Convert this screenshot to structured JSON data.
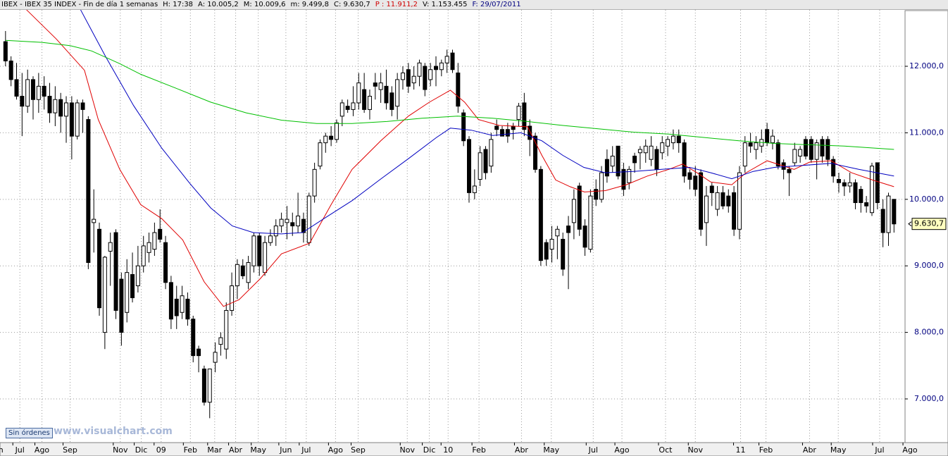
{
  "header": {
    "items": [
      {
        "text": "IBEX - IBEX 35 INDEX - Fin de día 1 semanas",
        "color": "#000000"
      },
      {
        "text": "H: 17:38",
        "color": "#000000"
      },
      {
        "text": "A: 10.005,2",
        "color": "#000000"
      },
      {
        "text": "M: 10.009,6",
        "color": "#000000"
      },
      {
        "text": "m: 9.499,8",
        "color": "#000000"
      },
      {
        "text": "C: 9.630,7",
        "color": "#000000"
      },
      {
        "text": "P : 11.911,2",
        "color": "#d00000"
      },
      {
        "text": "V: 1.153.455",
        "color": "#000000"
      },
      {
        "text": "F: 29/07/2011",
        "color": "#000080"
      }
    ]
  },
  "button": "Sin órdenes",
  "watermark": "www.visualchart.com",
  "chart_data": {
    "type": "candlestick",
    "xlim": [
      -1,
      163
    ],
    "ylim": [
      6343,
      12848
    ],
    "grid": true,
    "up_color": "#ffffff",
    "down_color": "#000000",
    "yticks": [
      {
        "value": 7000,
        "label": "7.000,0"
      },
      {
        "value": 8000,
        "label": "8.000,0"
      },
      {
        "value": 9000,
        "label": "9.000,0"
      },
      {
        "value": 10000,
        "label": "10.000,0"
      },
      {
        "value": 11000,
        "label": "11.000,0"
      },
      {
        "value": 12000,
        "label": "12.000,0"
      }
    ],
    "xticks": [
      {
        "value": -1.5,
        "label": "Jun"
      },
      {
        "value": 2.6,
        "label": "Jul"
      },
      {
        "value": 6.6,
        "label": "Ago"
      },
      {
        "value": 11.7,
        "label": "Sep"
      },
      {
        "value": 20.8,
        "label": "Nov"
      },
      {
        "value": 24.6,
        "label": "Dic"
      },
      {
        "value": 28.2,
        "label": "09"
      },
      {
        "value": 33.5,
        "label": "Feb"
      },
      {
        "value": 37.9,
        "label": "Mar"
      },
      {
        "value": 41.7,
        "label": "Abr"
      },
      {
        "value": 45.8,
        "label": "May"
      },
      {
        "value": 50.8,
        "label": "Jun"
      },
      {
        "value": 54.5,
        "label": "Jul"
      },
      {
        "value": 59.8,
        "label": "Ago"
      },
      {
        "value": 63.9,
        "label": "Sep"
      },
      {
        "value": 72.8,
        "label": "Nov"
      },
      {
        "value": 76.8,
        "label": "Dic"
      },
      {
        "value": 80.2,
        "label": "10"
      },
      {
        "value": 85.8,
        "label": "Feb"
      },
      {
        "value": 93.5,
        "label": "Abr"
      },
      {
        "value": 98.9,
        "label": "May"
      },
      {
        "value": 106.5,
        "label": "Jul"
      },
      {
        "value": 111.7,
        "label": "Ago"
      },
      {
        "value": 119.6,
        "label": "Oct"
      },
      {
        "value": 125,
        "label": "Nov"
      },
      {
        "value": 133.2,
        "label": "11"
      },
      {
        "value": 137.8,
        "label": "Feb"
      },
      {
        "value": 145.7,
        "label": "Abr"
      },
      {
        "value": 150.9,
        "label": "May"
      },
      {
        "value": 158.4,
        "label": "Jul"
      },
      {
        "value": 163.9,
        "label": "Ago"
      }
    ],
    "last_value": {
      "value": 9630.7,
      "label": "9.630,7"
    },
    "ohlc": [
      [
        12370,
        12530,
        12000,
        12080
      ],
      [
        12080,
        12150,
        11700,
        11800
      ],
      [
        11800,
        12050,
        11500,
        11550
      ],
      [
        11550,
        11900,
        10950,
        11400
      ],
      [
        11400,
        11950,
        11300,
        11800
      ],
      [
        11800,
        11850,
        11200,
        11500
      ],
      [
        11500,
        11900,
        11300,
        11700
      ],
      [
        11700,
        11850,
        11350,
        11550
      ],
      [
        11550,
        11750,
        11150,
        11300
      ],
      [
        11300,
        11700,
        11100,
        11500
      ],
      [
        11500,
        11600,
        11000,
        11250
      ],
      [
        11250,
        11550,
        10850,
        11450
      ],
      [
        11450,
        11550,
        10600,
        10950
      ],
      [
        10950,
        11500,
        10900,
        11450
      ],
      [
        11450,
        11500,
        11000,
        11350
      ],
      [
        11200,
        11250,
        8950,
        9050
      ],
      [
        9650,
        10150,
        9200,
        9700
      ],
      [
        9550,
        9650,
        8250,
        8370
      ],
      [
        8000,
        9150,
        7750,
        9130
      ],
      [
        9220,
        9500,
        8700,
        9350
      ],
      [
        9500,
        9550,
        8200,
        8330
      ],
      [
        8800,
        8900,
        7800,
        8000
      ],
      [
        8300,
        9100,
        8150,
        8900
      ],
      [
        8870,
        9200,
        8450,
        8520
      ],
      [
        8700,
        9300,
        8600,
        9000
      ],
      [
        9000,
        9450,
        8900,
        9300
      ],
      [
        9200,
        9500,
        9050,
        9350
      ],
      [
        9250,
        9650,
        9150,
        9500
      ],
      [
        9550,
        9850,
        9350,
        9400
      ],
      [
        9350,
        9450,
        8650,
        8750
      ],
      [
        8750,
        8850,
        8050,
        8200
      ],
      [
        8500,
        8700,
        8050,
        8250
      ],
      [
        8300,
        8700,
        8200,
        8550
      ],
      [
        8500,
        8600,
        8100,
        8200
      ],
      [
        8200,
        8250,
        7550,
        7650
      ],
      [
        7750,
        7800,
        7400,
        7650
      ],
      [
        7450,
        7500,
        6900,
        6950
      ],
      [
        6950,
        7450,
        6710,
        7450
      ],
      [
        7550,
        7850,
        7400,
        7700
      ],
      [
        7820,
        8000,
        7650,
        7920
      ],
      [
        7750,
        8450,
        7600,
        8330
      ],
      [
        8330,
        8900,
        8250,
        8700
      ],
      [
        8700,
        9100,
        8500,
        9020
      ],
      [
        9000,
        9100,
        8800,
        8850
      ],
      [
        8750,
        9150,
        8650,
        9050
      ],
      [
        9000,
        9500,
        8900,
        9450
      ],
      [
        9450,
        9500,
        8850,
        9000
      ],
      [
        8900,
        9450,
        8850,
        9350
      ],
      [
        9350,
        9550,
        9300,
        9450
      ],
      [
        9450,
        9700,
        9300,
        9600
      ],
      [
        9600,
        9800,
        9500,
        9700
      ],
      [
        9650,
        9900,
        9400,
        9700
      ],
      [
        9650,
        9800,
        9450,
        9600
      ],
      [
        9600,
        10100,
        9500,
        9750
      ],
      [
        9700,
        9800,
        9350,
        9500
      ],
      [
        9350,
        10100,
        9300,
        10050
      ],
      [
        10050,
        10550,
        9950,
        10450
      ],
      [
        10500,
        10900,
        10450,
        10850
      ],
      [
        10850,
        11000,
        10700,
        10950
      ],
      [
        10950,
        11100,
        10800,
        10900
      ],
      [
        10900,
        11200,
        10850,
        11150
      ],
      [
        11250,
        11500,
        11100,
        11450
      ],
      [
        11400,
        11500,
        11300,
        11350
      ],
      [
        11350,
        11700,
        11250,
        11450
      ],
      [
        11450,
        11900,
        11350,
        11750
      ],
      [
        11650,
        11900,
        11300,
        11350
      ],
      [
        11350,
        11650,
        11200,
        11550
      ],
      [
        11750,
        11900,
        11500,
        11700
      ],
      [
        11650,
        11900,
        11450,
        11750
      ],
      [
        11700,
        11950,
        11350,
        11450
      ],
      [
        11600,
        11700,
        11250,
        11350
      ],
      [
        11400,
        11900,
        11200,
        11800
      ],
      [
        11800,
        12000,
        11650,
        11900
      ],
      [
        11950,
        12050,
        11600,
        11700
      ],
      [
        11750,
        12000,
        11650,
        11850
      ],
      [
        11850,
        12100,
        11700,
        12050
      ],
      [
        12000,
        12050,
        11550,
        11650
      ],
      [
        11800,
        12050,
        11700,
        11950
      ],
      [
        12000,
        12150,
        11700,
        11950
      ],
      [
        11950,
        12100,
        11850,
        12050
      ],
      [
        12050,
        12250,
        11900,
        12150
      ],
      [
        12200,
        12250,
        11900,
        11950
      ],
      [
        11900,
        12050,
        11300,
        11400
      ],
      [
        11300,
        11350,
        10800,
        10880
      ],
      [
        10900,
        10950,
        9950,
        10100
      ],
      [
        10100,
        10450,
        10000,
        10200
      ],
      [
        10300,
        10800,
        10200,
        10700
      ],
      [
        10750,
        10800,
        10300,
        10400
      ],
      [
        10500,
        11000,
        10400,
        10900
      ],
      [
        11100,
        11200,
        10950,
        11050
      ],
      [
        11050,
        11100,
        10950,
        10950
      ],
      [
        11050,
        11150,
        10850,
        10950
      ],
      [
        11100,
        11150,
        10900,
        11050
      ],
      [
        11200,
        11450,
        11100,
        11400
      ],
      [
        11450,
        11600,
        10950,
        11050
      ],
      [
        11100,
        11200,
        10650,
        10900
      ],
      [
        10950,
        11000,
        10400,
        10450
      ],
      [
        10450,
        10500,
        9000,
        9080
      ],
      [
        9350,
        9400,
        9000,
        9100
      ],
      [
        9250,
        9600,
        9050,
        9400
      ],
      [
        9450,
        9600,
        9100,
        9550
      ],
      [
        9400,
        9500,
        8850,
        8950
      ],
      [
        9600,
        9750,
        8650,
        9500
      ],
      [
        9650,
        10150,
        9400,
        10000
      ],
      [
        10200,
        10250,
        9450,
        9550
      ],
      [
        9600,
        9700,
        9150,
        9280
      ],
      [
        9250,
        10150,
        9200,
        10050
      ],
      [
        10150,
        10300,
        9900,
        10000
      ],
      [
        10000,
        10500,
        9950,
        10400
      ],
      [
        10600,
        10750,
        10250,
        10350
      ],
      [
        10500,
        10800,
        10400,
        10650
      ],
      [
        10800,
        10800,
        10300,
        10350
      ],
      [
        10450,
        10550,
        10050,
        10150
      ],
      [
        10250,
        10500,
        10150,
        10450
      ],
      [
        10650,
        10700,
        10400,
        10550
      ],
      [
        10700,
        10800,
        10450,
        10750
      ],
      [
        10700,
        10900,
        10550,
        10800
      ],
      [
        10600,
        10950,
        10500,
        10800
      ],
      [
        10750,
        10800,
        10350,
        10450
      ],
      [
        10700,
        10950,
        10600,
        10850
      ],
      [
        10800,
        10950,
        10650,
        10900
      ],
      [
        10850,
        11050,
        10750,
        10950
      ],
      [
        10950,
        11050,
        10700,
        10850
      ],
      [
        10850,
        10900,
        10250,
        10350
      ],
      [
        10400,
        10450,
        10150,
        10300
      ],
      [
        10350,
        10500,
        10050,
        10150
      ],
      [
        10400,
        10450,
        9450,
        9550
      ],
      [
        9650,
        10200,
        9300,
        10050
      ],
      [
        10200,
        10250,
        9900,
        10100
      ],
      [
        9850,
        10200,
        9750,
        10100
      ],
      [
        10100,
        10200,
        9850,
        9900
      ],
      [
        10050,
        10150,
        9800,
        9900
      ],
      [
        10100,
        10200,
        9450,
        9550
      ],
      [
        9550,
        10500,
        9400,
        10400
      ],
      [
        10500,
        10950,
        10400,
        10850
      ],
      [
        10850,
        11000,
        10700,
        10800
      ],
      [
        10750,
        10950,
        10600,
        10850
      ],
      [
        10800,
        11050,
        10700,
        10900
      ],
      [
        11050,
        11150,
        10800,
        10850
      ],
      [
        10850,
        11050,
        10750,
        10950
      ],
      [
        10850,
        10900,
        10450,
        10500
      ],
      [
        10550,
        10600,
        10300,
        10450
      ],
      [
        10450,
        10500,
        10050,
        10400
      ],
      [
        10550,
        10850,
        10500,
        10750
      ],
      [
        10650,
        10800,
        10550,
        10750
      ],
      [
        10900,
        10950,
        10600,
        10650
      ],
      [
        10900,
        10950,
        10550,
        10600
      ],
      [
        10600,
        10900,
        10300,
        10850
      ],
      [
        10900,
        10950,
        10550,
        10650
      ],
      [
        10900,
        10950,
        10500,
        10600
      ],
      [
        10600,
        10650,
        10250,
        10350
      ],
      [
        10300,
        10400,
        10100,
        10250
      ],
      [
        10250,
        10300,
        10050,
        10200
      ],
      [
        10200,
        10400,
        10100,
        10250
      ],
      [
        10250,
        10300,
        9850,
        9950
      ],
      [
        10150,
        10200,
        9800,
        9950
      ],
      [
        9950,
        10050,
        9800,
        9900
      ],
      [
        9800,
        10550,
        9750,
        10500
      ],
      [
        10550,
        10550,
        9850,
        9950
      ],
      [
        9850,
        10000,
        9280,
        9500
      ],
      [
        9500,
        10100,
        9300,
        10050
      ],
      [
        10000,
        10000,
        9500,
        9630
      ]
    ],
    "series": [
      {
        "color": "#e00000",
        "x": [
          3.8,
          9.2,
          14.3,
          16.8,
          20.7,
          24.5,
          28.3,
          32.1,
          36,
          39.5,
          42.3,
          46.2,
          50,
          55.1,
          59,
          62.8,
          68,
          73,
          76.8,
          80.6,
          83.2,
          85.7,
          89.5,
          94.6,
          97.2,
          99.7,
          102.3,
          104.9,
          108.7,
          112.5,
          116.3,
          120.2,
          122.7,
          125.3,
          127.8,
          131.6,
          134.2,
          138,
          142.9,
          145.7,
          149.6,
          153.3,
          157.1,
          161
        ],
        "values": [
          12850,
          12410,
          11940,
          11200,
          10450,
          9920,
          9710,
          9390,
          8760,
          8390,
          8490,
          8810,
          9180,
          9340,
          9920,
          10450,
          10880,
          11250,
          11460,
          11640,
          11460,
          11200,
          11110,
          11090,
          10660,
          10290,
          10190,
          10110,
          10130,
          10220,
          10350,
          10450,
          10530,
          10400,
          10260,
          10220,
          10400,
          10580,
          10450,
          10560,
          10580,
          10400,
          10290,
          10190
        ]
      },
      {
        "color": "#0000c0",
        "x": [
          13.6,
          18.1,
          23.2,
          28.3,
          33.4,
          37.2,
          41.1,
          44.9,
          50,
          53.8,
          57.7,
          62.8,
          67.9,
          73,
          78.1,
          80.6,
          84.4,
          88.3,
          93.4,
          97.2,
          101,
          104.8,
          108.7,
          113.8,
          118.9,
          124,
          127.8,
          131.6,
          135.5,
          139.3,
          144.4,
          149.6,
          154.6,
          161
        ],
        "values": [
          12850,
          12150,
          11410,
          10770,
          10240,
          9870,
          9600,
          9500,
          9480,
          9500,
          9710,
          9980,
          10300,
          10610,
          10930,
          11070,
          11040,
          10960,
          11000,
          10880,
          10660,
          10480,
          10400,
          10420,
          10450,
          10480,
          10400,
          10310,
          10420,
          10480,
          10510,
          10540,
          10450,
          10350
        ]
      },
      {
        "color": "#00c000",
        "x": [
          0,
          6.6,
          11.7,
          15.6,
          20.7,
          24.5,
          30.9,
          37.2,
          43.6,
          50,
          56.4,
          62.8,
          69.1,
          75.5,
          81.9,
          88.3,
          94.6,
          101,
          107.4,
          113.8,
          120.2,
          126.5,
          132.9,
          139.3,
          145.7,
          152,
          161
        ],
        "values": [
          12390,
          12360,
          12310,
          12230,
          12040,
          11880,
          11670,
          11460,
          11300,
          11190,
          11140,
          11140,
          11170,
          11220,
          11250,
          11220,
          11170,
          11110,
          11060,
          11010,
          10980,
          10930,
          10880,
          10840,
          10820,
          10800,
          10750
        ]
      }
    ]
  }
}
